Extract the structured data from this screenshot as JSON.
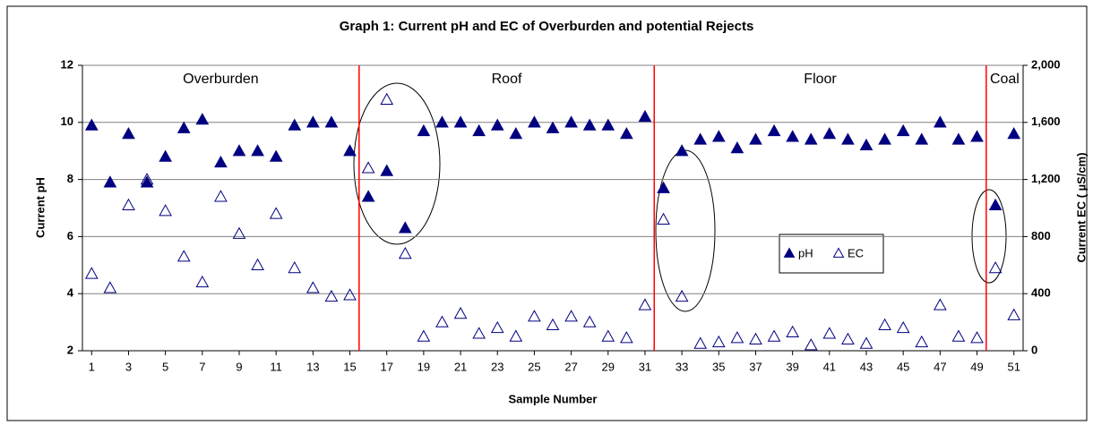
{
  "chart_data": {
    "type": "scatter",
    "title": "Graph 1:  Current pH and EC of Overburden and potential Rejects",
    "x_label": "Sample Number",
    "y_label": "Current pH",
    "y2_label": "Current EC ( µS/cm)",
    "x": [
      1,
      2,
      3,
      4,
      5,
      6,
      7,
      8,
      9,
      10,
      11,
      12,
      13,
      14,
      15,
      16,
      17,
      18,
      19,
      20,
      21,
      22,
      23,
      24,
      25,
      26,
      27,
      28,
      29,
      30,
      31,
      32,
      33,
      34,
      35,
      36,
      37,
      38,
      39,
      40,
      41,
      42,
      43,
      44,
      45,
      46,
      47,
      48,
      49,
      50,
      51
    ],
    "series": [
      {
        "name": "pH",
        "color": "#000080",
        "marker": "filled-triangle",
        "values": [
          9.9,
          7.9,
          9.6,
          7.9,
          8.8,
          9.8,
          10.1,
          8.6,
          9.0,
          9.0,
          8.8,
          9.9,
          10.0,
          10.0,
          9.0,
          7.4,
          8.3,
          6.3,
          9.7,
          10.0,
          10.0,
          9.7,
          9.9,
          9.6,
          10.0,
          9.8,
          10.0,
          9.9,
          9.9,
          9.6,
          10.2,
          7.7,
          9.0,
          9.4,
          9.5,
          9.1,
          9.4,
          9.7,
          9.5,
          9.4,
          9.6,
          9.4,
          9.2,
          9.4,
          9.7,
          9.4,
          10.0,
          9.4,
          9.5,
          7.1,
          9.6
        ]
      },
      {
        "name": "EC",
        "color": "#000080",
        "marker": "open-triangle",
        "axis": "y2",
        "values": [
          540,
          440,
          1020,
          1200,
          980,
          660,
          480,
          1080,
          820,
          600,
          960,
          580,
          440,
          380,
          390,
          1280,
          1760,
          680,
          100,
          200,
          260,
          120,
          160,
          100,
          240,
          180,
          240,
          200,
          100,
          90,
          320,
          920,
          380,
          50,
          60,
          90,
          80,
          100,
          130,
          40,
          120,
          80,
          50,
          180,
          160,
          60,
          320,
          100,
          90,
          580,
          250
        ]
      }
    ],
    "xlim": [
      0.5,
      51.5
    ],
    "xticks": [
      1,
      3,
      5,
      7,
      9,
      11,
      13,
      15,
      17,
      19,
      21,
      23,
      25,
      27,
      29,
      31,
      33,
      35,
      37,
      39,
      41,
      43,
      45,
      47,
      49,
      51
    ],
    "ylim": [
      2,
      12
    ],
    "yticks": [
      2,
      4,
      6,
      8,
      10,
      12
    ],
    "y2lim": [
      0,
      2000
    ],
    "y2ticks": [
      0,
      400,
      800,
      {
        "value": 1200,
        "label": "1,200"
      },
      {
        "value": 1600,
        "label": "1,600"
      },
      {
        "value": 2000,
        "label": "2,000"
      }
    ],
    "grid": true,
    "dividers": [
      15.5,
      31.5,
      49.5
    ],
    "divider_color": "#ff0000",
    "regions": [
      "Overburden",
      "Roof",
      "Floor",
      "Coal"
    ]
  }
}
